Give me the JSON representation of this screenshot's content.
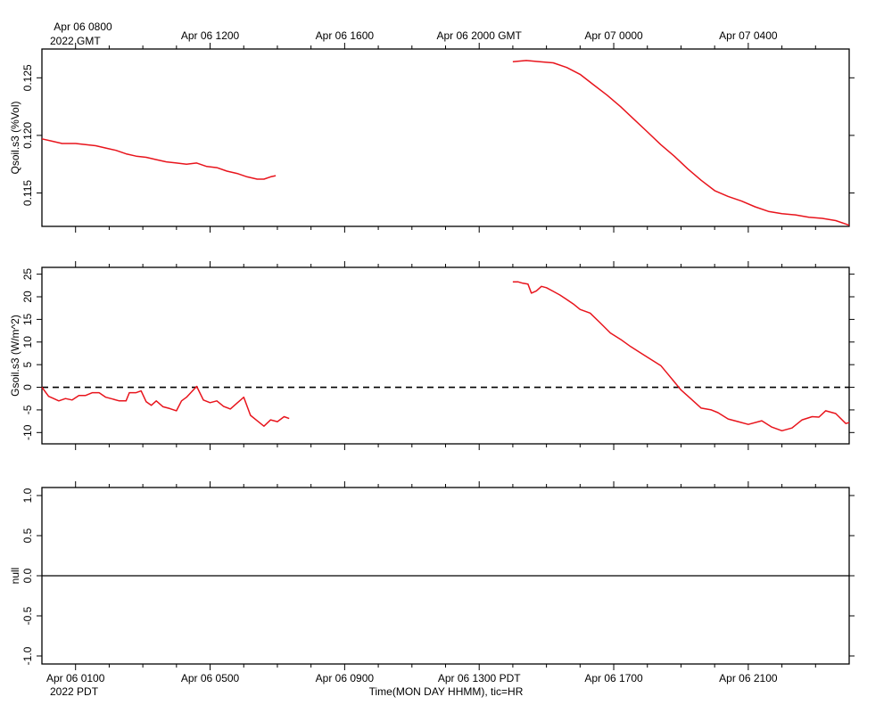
{
  "figure": {
    "top_axis_labels": [
      "Apr 06 0800",
      "Apr 06 1200",
      "Apr 06 1600",
      "Apr 06 2000 GMT",
      "Apr 07 0000",
      "Apr 07 0400"
    ],
    "top_year_label": "2022 GMT",
    "bottom_axis_labels": [
      "Apr 06 0100",
      "Apr 06 0500",
      "Apr 06 0900",
      "Apr 06 1300 PDT",
      "Apr 06 1700",
      "Apr 06 2100"
    ],
    "bottom_year_label": "2022 PDT",
    "xlabel": "Time(MON DAY HHMM), tic=HR",
    "line_color": "#e8141c"
  },
  "chart_data": [
    {
      "type": "line",
      "ylabel": "Qsoil.s3 (%Vol)",
      "ylim": [
        0.1121,
        0.1275
      ],
      "yticks": [
        "0.115",
        "0.120",
        "0.125"
      ],
      "x_unit": "hours since Apr 06 0000 PDT",
      "xlim": [
        0,
        24
      ],
      "series": [
        {
          "segments": [
            [
              [
                0.0,
                0.1197
              ],
              [
                0.3,
                0.1195
              ],
              [
                0.6,
                0.1193
              ],
              [
                1.0,
                0.1193
              ],
              [
                1.3,
                0.1192
              ],
              [
                1.6,
                0.1191
              ],
              [
                1.9,
                0.1189
              ],
              [
                2.2,
                0.1187
              ],
              [
                2.5,
                0.1184
              ],
              [
                2.8,
                0.1182
              ],
              [
                3.1,
                0.1181
              ],
              [
                3.4,
                0.1179
              ],
              [
                3.7,
                0.1177
              ],
              [
                4.0,
                0.1176
              ],
              [
                4.3,
                0.1175
              ],
              [
                4.6,
                0.1176
              ],
              [
                4.9,
                0.1173
              ],
              [
                5.2,
                0.1172
              ],
              [
                5.5,
                0.1169
              ],
              [
                5.8,
                0.1167
              ],
              [
                6.1,
                0.1164
              ],
              [
                6.4,
                0.1162
              ],
              [
                6.6,
                0.1162
              ],
              [
                6.8,
                0.1164
              ],
              [
                6.95,
                0.1165
              ]
            ],
            [
              [
                14.0,
                0.1264
              ],
              [
                14.4,
                0.1265
              ],
              [
                14.8,
                0.1264
              ],
              [
                15.2,
                0.1263
              ],
              [
                15.6,
                0.1259
              ],
              [
                16.0,
                0.1253
              ],
              [
                16.4,
                0.1244
              ],
              [
                16.8,
                0.1235
              ],
              [
                17.2,
                0.1225
              ],
              [
                17.6,
                0.1214
              ],
              [
                18.0,
                0.1203
              ],
              [
                18.4,
                0.1192
              ],
              [
                18.8,
                0.1182
              ],
              [
                19.2,
                0.1171
              ],
              [
                19.6,
                0.1161
              ],
              [
                20.0,
                0.1152
              ],
              [
                20.4,
                0.1147
              ],
              [
                20.8,
                0.1143
              ],
              [
                21.2,
                0.1138
              ],
              [
                21.6,
                0.1134
              ],
              [
                22.0,
                0.1132
              ],
              [
                22.4,
                0.1131
              ],
              [
                22.8,
                0.1129
              ],
              [
                23.2,
                0.1128
              ],
              [
                23.6,
                0.1126
              ],
              [
                24.0,
                0.1122
              ]
            ]
          ]
        }
      ]
    },
    {
      "type": "line",
      "ylabel": "Gsoil.s3 (W/m^2)",
      "ylim": [
        -12.5,
        26.5
      ],
      "yticks": [
        "-10",
        "-5",
        "0",
        "5",
        "10",
        "15",
        "20",
        "25"
      ],
      "reference_line": 0,
      "x_unit": "hours since Apr 06 0000 PDT",
      "xlim": [
        0,
        24
      ],
      "series": [
        {
          "segments": [
            [
              [
                0.0,
                0.0
              ],
              [
                0.2,
                -2.0
              ],
              [
                0.35,
                -2.5
              ],
              [
                0.5,
                -3.0
              ],
              [
                0.7,
                -2.5
              ],
              [
                0.9,
                -2.8
              ],
              [
                1.1,
                -1.8
              ],
              [
                1.3,
                -1.8
              ],
              [
                1.5,
                -1.2
              ],
              [
                1.7,
                -1.2
              ],
              [
                1.9,
                -2.2
              ],
              [
                2.1,
                -2.6
              ],
              [
                2.3,
                -3.0
              ],
              [
                2.5,
                -3.0
              ],
              [
                2.6,
                -1.2
              ],
              [
                2.8,
                -1.2
              ],
              [
                2.95,
                -0.8
              ],
              [
                3.1,
                -3.2
              ],
              [
                3.25,
                -4.0
              ],
              [
                3.4,
                -3.0
              ],
              [
                3.6,
                -4.3
              ],
              [
                3.8,
                -4.7
              ],
              [
                4.0,
                -5.2
              ],
              [
                4.15,
                -3.0
              ],
              [
                4.3,
                -2.2
              ],
              [
                4.45,
                -1.0
              ],
              [
                4.6,
                0.2
              ],
              [
                4.8,
                -2.8
              ],
              [
                5.0,
                -3.4
              ],
              [
                5.2,
                -3.0
              ],
              [
                5.4,
                -4.2
              ],
              [
                5.6,
                -4.8
              ],
              [
                5.8,
                -3.5
              ],
              [
                6.0,
                -2.2
              ],
              [
                6.2,
                -6.2
              ],
              [
                6.4,
                -7.4
              ],
              [
                6.6,
                -8.6
              ],
              [
                6.8,
                -7.2
              ],
              [
                7.0,
                -7.6
              ],
              [
                7.2,
                -6.5
              ],
              [
                7.35,
                -6.9
              ]
            ],
            [
              [
                14.0,
                23.3
              ],
              [
                14.15,
                23.3
              ],
              [
                14.3,
                23.0
              ],
              [
                14.45,
                22.8
              ],
              [
                14.55,
                20.8
              ],
              [
                14.7,
                21.3
              ],
              [
                14.85,
                22.3
              ],
              [
                15.0,
                22.0
              ],
              [
                15.2,
                21.2
              ],
              [
                15.4,
                20.4
              ],
              [
                15.6,
                19.4
              ],
              [
                15.8,
                18.4
              ],
              [
                16.0,
                17.2
              ],
              [
                16.3,
                16.4
              ],
              [
                16.6,
                14.2
              ],
              [
                16.9,
                12.0
              ],
              [
                17.2,
                10.6
              ],
              [
                17.5,
                9.0
              ],
              [
                17.8,
                7.6
              ],
              [
                18.1,
                6.2
              ],
              [
                18.4,
                4.8
              ],
              [
                18.6,
                3.0
              ],
              [
                18.8,
                1.2
              ],
              [
                19.0,
                -0.6
              ],
              [
                19.3,
                -2.6
              ],
              [
                19.6,
                -4.6
              ],
              [
                19.9,
                -5.0
              ],
              [
                20.1,
                -5.6
              ],
              [
                20.4,
                -7.0
              ],
              [
                20.7,
                -7.6
              ],
              [
                21.0,
                -8.2
              ],
              [
                21.4,
                -7.4
              ],
              [
                21.7,
                -8.8
              ],
              [
                22.0,
                -9.6
              ],
              [
                22.3,
                -9.0
              ],
              [
                22.6,
                -7.2
              ],
              [
                22.9,
                -6.5
              ],
              [
                23.1,
                -6.6
              ],
              [
                23.3,
                -5.2
              ],
              [
                23.6,
                -5.8
              ],
              [
                23.9,
                -8.0
              ],
              [
                24.0,
                -7.8
              ]
            ]
          ]
        }
      ]
    },
    {
      "type": "line",
      "ylabel": "null",
      "ylim": [
        -1.1,
        1.1
      ],
      "yticks": [
        "-1.0",
        "-0.5",
        "0.0",
        "0.5",
        "1.0"
      ],
      "x_unit": "hours since Apr 06 0000 PDT",
      "xlim": [
        0,
        24
      ],
      "series": [
        {
          "segments": [
            [
              [
                0,
                0
              ],
              [
                24,
                0
              ]
            ]
          ]
        }
      ]
    }
  ]
}
